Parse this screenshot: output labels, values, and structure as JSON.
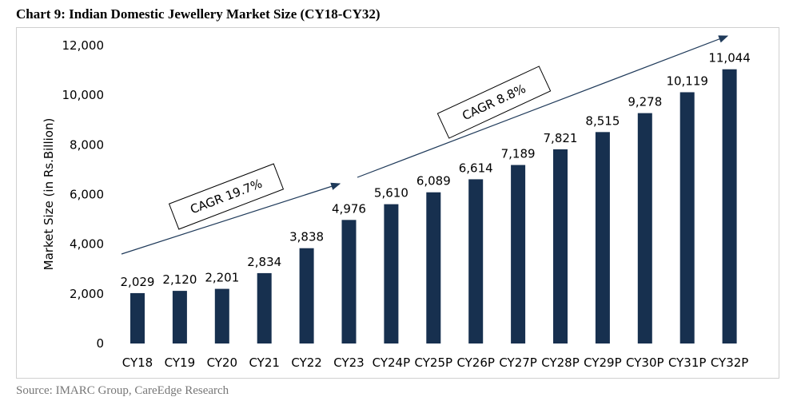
{
  "title": "Chart 9: Indian Domestic Jewellery Market Size (CY18-CY32)",
  "source": "Source: IMARC Group, CareEdge Research",
  "chart_data": {
    "type": "bar",
    "title": "Chart 9: Indian Domestic Jewellery Market Size (CY18-CY32)",
    "xlabel": "",
    "ylabel": "Market Size (in Rs.Billion)",
    "ylim": [
      0,
      12000
    ],
    "yticks": [
      0,
      2000,
      4000,
      6000,
      8000,
      10000,
      12000
    ],
    "ytick_labels": [
      "0",
      "2,000",
      "4,000",
      "6,000",
      "8,000",
      "10,000",
      "12,000"
    ],
    "grid": false,
    "bar_color": "#17304f",
    "categories": [
      "CY18",
      "CY19",
      "CY20",
      "CY21",
      "CY22",
      "CY23",
      "CY24P",
      "CY25P",
      "CY26P",
      "CY27P",
      "CY28P",
      "CY29P",
      "CY30P",
      "CY31P",
      "CY32P"
    ],
    "values": [
      2029,
      2120,
      2201,
      2834,
      3838,
      4976,
      5610,
      6089,
      6614,
      7189,
      7821,
      8515,
      9278,
      10119,
      11044
    ],
    "data_labels": [
      "2,029",
      "2,120",
      "2,201",
      "2,834",
      "3,838",
      "4,976",
      "5,610",
      "6,089",
      "6,614",
      "7,189",
      "7,821",
      "8,515",
      "9,278",
      "10,119",
      "11,044"
    ],
    "annotations": [
      {
        "text": "CAGR 19.7%",
        "from": "CY18",
        "to": "CY23"
      },
      {
        "text": "CAGR 8.8%",
        "from": "CY23",
        "to": "CY32P"
      }
    ]
  }
}
